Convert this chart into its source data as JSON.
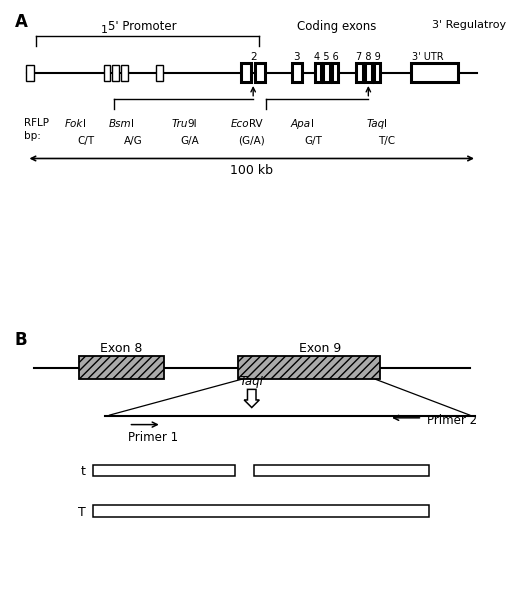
{
  "panel_A_label": "A",
  "panel_B_label": "B",
  "title_5prime": "5' Promoter",
  "title_coding": "Coding exons",
  "title_3prime": "3' Regulatroy",
  "exon1_label": "1",
  "exon2_label": "2",
  "exon3_label": "3",
  "utr_label": "3' UTR",
  "rflp_label": "RFLP\nbp:",
  "enzymes": [
    {
      "name": "FokI",
      "alleles": "C/T",
      "italic_prefix": "Fok",
      "normal_suffix": "I"
    },
    {
      "name": "BsmI",
      "alleles": "A/G",
      "italic_prefix": "Bsm",
      "normal_suffix": "I"
    },
    {
      "name": "Tru9I",
      "alleles": "G/A",
      "italic_prefix": "Tru",
      "normal_suffix": "9I"
    },
    {
      "name": "EcoRV",
      "alleles": "(G/A)",
      "italic_prefix": "Eco",
      "normal_suffix": "RV"
    },
    {
      "name": "ApaI",
      "alleles": "G/T",
      "italic_prefix": "Apa",
      "normal_suffix": "I"
    },
    {
      "name": "TaqI",
      "alleles": "T/C",
      "italic_prefix": "Taq",
      "normal_suffix": "I"
    }
  ],
  "scale_label": "100 kb",
  "exon8_label": "Exon 8",
  "exon9_label": "Exon 9",
  "taqi_label": "TaqI",
  "primer1_label": "Primer 1",
  "primer2_label": "Primer 2",
  "t_label": "t",
  "T_label": "T",
  "bg_color": "#ffffff"
}
